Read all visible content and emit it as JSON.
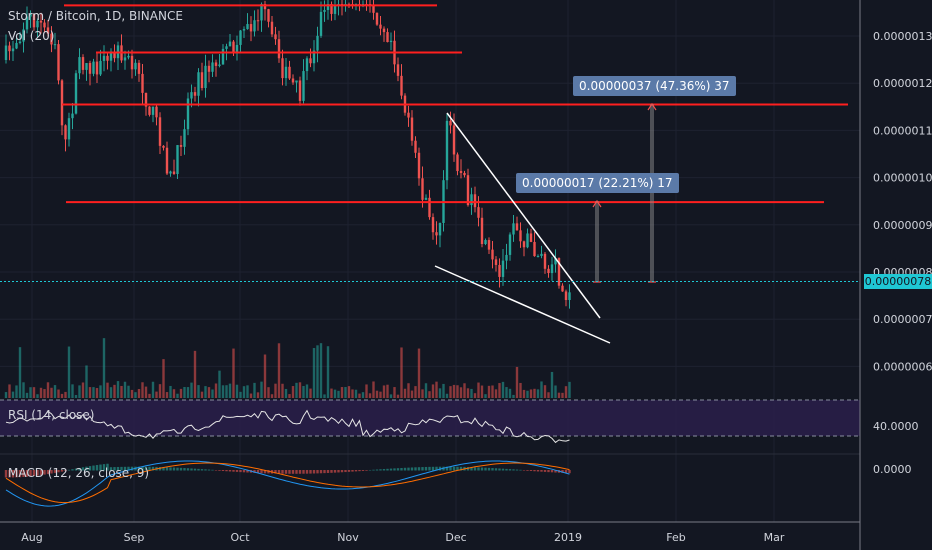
{
  "header": {
    "symbol_line": "Storm / Bitcoin, 1D, BINANCE",
    "vol_label": "Vol (20)",
    "rsi_label": "RSI (14, close)",
    "macd_label": "MACD (12, 26, close, 9)"
  },
  "price_axis": {
    "ticks": [
      "0.00000130",
      "0.00000120",
      "0.00000110",
      "0.00000100",
      "0.00000090",
      "0.00000080",
      "0.00000070",
      "0.00000060"
    ],
    "current_price": "0.00000078"
  },
  "rsi_axis": {
    "tick": "40.0000"
  },
  "macd_axis": {
    "tick": "0.0000"
  },
  "time_axis": {
    "labels": [
      "Aug",
      "Sep",
      "Oct",
      "Nov",
      "Dec",
      "2019",
      "Feb",
      "Mar"
    ]
  },
  "measures": [
    {
      "text": "0.00000037 (47.36%) 37"
    },
    {
      "text": "0.00000017 (22.21%) 17"
    }
  ],
  "colors": {
    "background": "#131722",
    "up": "#26a69a",
    "down": "#ef5350",
    "level_line": "#ff1f1f",
    "wedge": "#ffffff",
    "current_price": "#1fc7d4",
    "rsi_band": "#2a1f4a"
  },
  "chart_data": {
    "type": "candlestick",
    "price_levels": [
      1.365e-06,
      1.265e-06,
      1.155e-06,
      9.48e-07
    ],
    "current_price": 7.8e-07,
    "y_range": [
      5.2e-07,
      1.376e-06
    ],
    "indicators": [
      "Vol (20)",
      "RSI (14, close)",
      "MACD (12, 26, close, 9)"
    ]
  }
}
